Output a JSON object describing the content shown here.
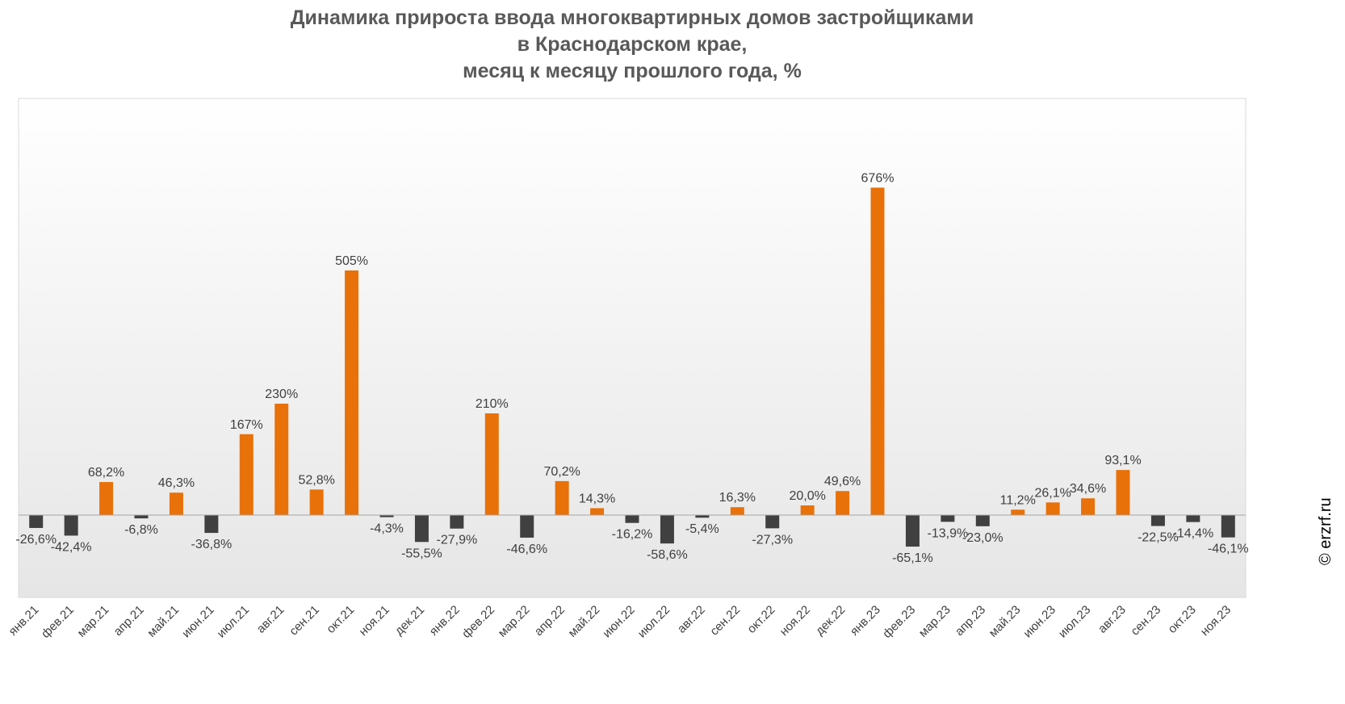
{
  "title_lines": [
    "Динамика прироста ввода многоквартирных домов застройщиками",
    "в Краснодарском крае,",
    "месяц к месяцу прошлого года, %"
  ],
  "watermark": "© erzrf.ru",
  "colors": {
    "positive": "#E8710A",
    "negative": "#404040",
    "text": "#404040",
    "title": "#595959"
  },
  "chart_data": {
    "type": "bar",
    "title": "Динамика прироста ввода многоквартирных домов застройщиками в Краснодарском крае, месяц к месяцу прошлого года, %",
    "xlabel": "",
    "ylabel": "",
    "ylim": [
      -170,
      860
    ],
    "grid": false,
    "legend": "none",
    "categories": [
      "янв.21",
      "фев.21",
      "мар.21",
      "апр.21",
      "май.21",
      "июн.21",
      "июл.21",
      "авг.21",
      "сен.21",
      "окт.21",
      "ноя.21",
      "дек.21",
      "янв.22",
      "фев.22",
      "мар.22",
      "апр.22",
      "май.22",
      "июн.22",
      "июл.22",
      "авг.22",
      "сен.22",
      "окт.22",
      "ноя.22",
      "дек.22",
      "янв.23",
      "фев.23",
      "мар.23",
      "апр.23",
      "май.23",
      "июн.23",
      "июл.23",
      "авг.23",
      "сен.23",
      "окт.23",
      "ноя.23"
    ],
    "values": [
      -26.6,
      -42.4,
      68.2,
      -6.8,
      46.3,
      -36.8,
      167,
      230,
      52.8,
      505,
      -4.3,
      -55.5,
      -27.9,
      210,
      -46.6,
      70.2,
      14.3,
      -16.2,
      -58.6,
      -5.4,
      16.3,
      -27.3,
      20.0,
      49.6,
      676,
      -65.1,
      -13.9,
      -23.0,
      11.2,
      26.1,
      34.6,
      93.1,
      -22.5,
      -14.4,
      -46.1
    ],
    "labels": [
      "-26,6%",
      "-42,4%",
      "68,2%",
      "-6,8%",
      "46,3%",
      "-36,8%",
      "167%",
      "230%",
      "52,8%",
      "505%",
      "-4,3%",
      "-55,5%",
      "-27,9%",
      "210%",
      "-46,6%",
      "70,2%",
      "14,3%",
      "-16,2%",
      "-58,6%",
      "-5,4%",
      "16,3%",
      "-27,3%",
      "20,0%",
      "49,6%",
      "676%",
      "-65,1%",
      "-13,9%",
      "-23,0%",
      "11,2%",
      "26,1%",
      "34,6%",
      "93,1%",
      "-22,5%",
      "-14,4%",
      "-46,1%"
    ]
  }
}
